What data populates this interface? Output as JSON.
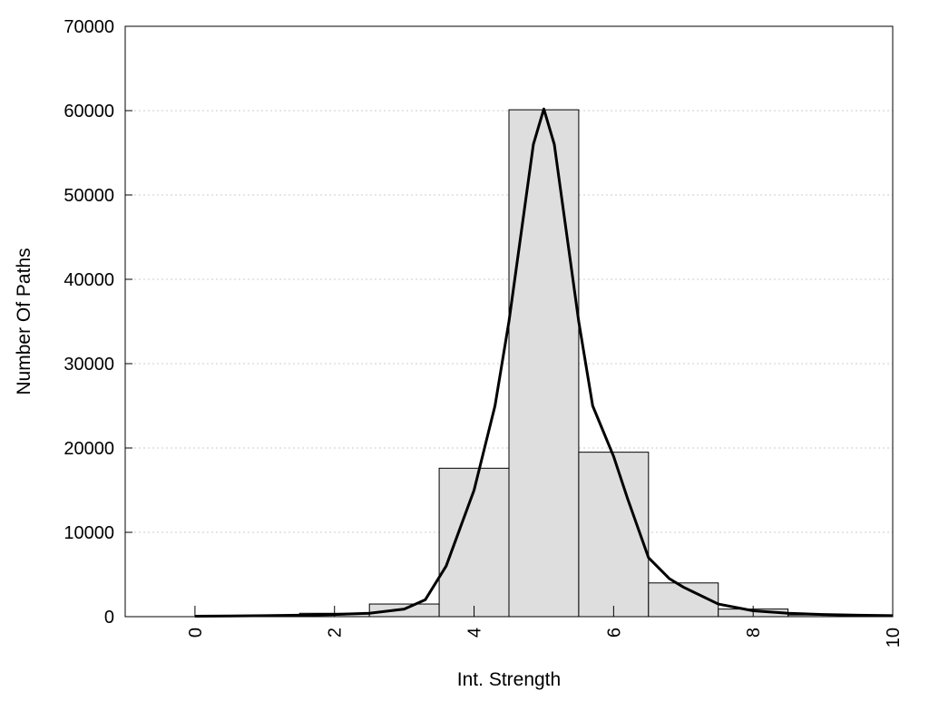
{
  "chart_data": {
    "type": "bar",
    "title": "",
    "xlabel": "Int. Strength",
    "ylabel": "Number Of Paths",
    "xlim": [
      -1,
      10
    ],
    "ylim": [
      0,
      70000
    ],
    "grid": {
      "y": true,
      "x": false
    },
    "x_ticks": [
      "0",
      "2",
      "4",
      "6",
      "8",
      "10"
    ],
    "y_ticks": [
      "0",
      "10000",
      "20000",
      "30000",
      "40000",
      "50000",
      "60000",
      "70000"
    ],
    "bin_width": 1,
    "bars": [
      {
        "x": 0,
        "value": 0
      },
      {
        "x": 1,
        "value": 0
      },
      {
        "x": 2,
        "value": 400
      },
      {
        "x": 3,
        "value": 1500
      },
      {
        "x": 4,
        "value": 17600
      },
      {
        "x": 5,
        "value": 60100
      },
      {
        "x": 6,
        "value": 19500
      },
      {
        "x": 7,
        "value": 4000
      },
      {
        "x": 8,
        "value": 900
      },
      {
        "x": 9,
        "value": 200
      },
      {
        "x": 10,
        "value": 0
      }
    ],
    "curve": [
      [
        0,
        50
      ],
      [
        0.5,
        80
      ],
      [
        1,
        120
      ],
      [
        1.5,
        180
      ],
      [
        2,
        260
      ],
      [
        2.5,
        400
      ],
      [
        3,
        900
      ],
      [
        3.3,
        2000
      ],
      [
        3.6,
        6000
      ],
      [
        4,
        15000
      ],
      [
        4.3,
        25000
      ],
      [
        4.5,
        35000
      ],
      [
        4.7,
        47000
      ],
      [
        4.85,
        56000
      ],
      [
        5,
        60200
      ],
      [
        5.15,
        56000
      ],
      [
        5.3,
        47000
      ],
      [
        5.5,
        35000
      ],
      [
        5.7,
        25000
      ],
      [
        6,
        19000
      ],
      [
        6.2,
        14000
      ],
      [
        6.5,
        7000
      ],
      [
        6.8,
        4500
      ],
      [
        7,
        3500
      ],
      [
        7.5,
        1500
      ],
      [
        8,
        700
      ],
      [
        8.5,
        400
      ],
      [
        9,
        250
      ],
      [
        9.5,
        180
      ],
      [
        10,
        120
      ]
    ],
    "colors": {
      "bar_fill": "#dedede",
      "bar_stroke": "#000000",
      "curve": "#000000",
      "grid": "#cccccc"
    }
  }
}
